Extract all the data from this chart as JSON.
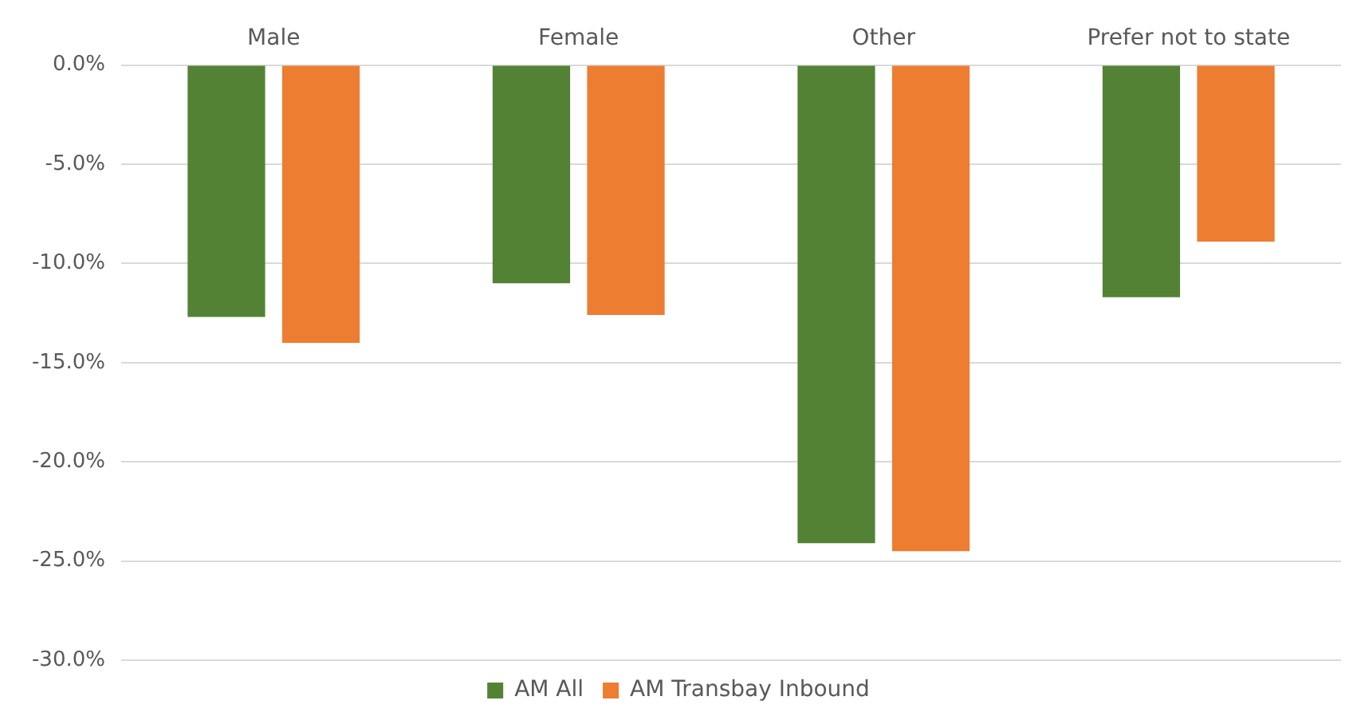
{
  "chart_data": {
    "type": "bar",
    "categories": [
      "Male",
      "Female",
      "Other",
      "Prefer not to state"
    ],
    "series": [
      {
        "name": "AM All",
        "color": "#548235",
        "values": [
          -12.7,
          -11.0,
          -24.1,
          -11.7
        ]
      },
      {
        "name": "AM Transbay Inbound",
        "color": "#ed7d31",
        "values": [
          -14.0,
          -12.6,
          -24.5,
          -8.9
        ]
      }
    ],
    "ylim": [
      -30,
      0
    ],
    "yticks": [
      {
        "value": 0,
        "label": "0.0%"
      },
      {
        "value": -5,
        "label": "-5.0%"
      },
      {
        "value": -10,
        "label": "-10.0%"
      },
      {
        "value": -15,
        "label": "-15.0%"
      },
      {
        "value": -20,
        "label": "-20.0%"
      },
      {
        "value": -25,
        "label": "-25.0%"
      },
      {
        "value": -30,
        "label": "-30.0%"
      }
    ],
    "grid": "y",
    "legend": "bottom"
  }
}
